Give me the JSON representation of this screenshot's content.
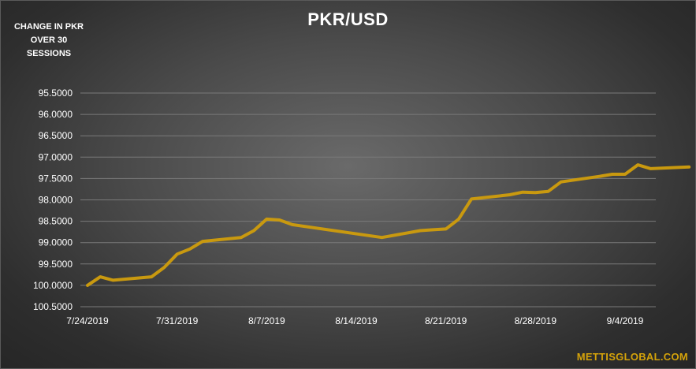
{
  "note": "CHANGE IN PKR OVER 30 SESSIONS",
  "credit": "METTISGLOBAL.COM",
  "colors": {
    "line": "#c9990f",
    "grid": "#7a7a7a",
    "text": "#ffffff",
    "credit": "#d4a20a"
  },
  "chart_data": {
    "type": "line",
    "title": "PKR/USD",
    "xlabel": "",
    "ylabel": "",
    "y_inverted": true,
    "ylim": [
      95.5,
      100.5
    ],
    "yticks": [
      "95.5000",
      "96.0000",
      "96.5000",
      "97.0000",
      "97.5000",
      "98.0000",
      "98.5000",
      "99.0000",
      "99.5000",
      "100.0000",
      "100.5000"
    ],
    "xticks": [
      "7/24/2019",
      "7/31/2019",
      "8/7/2019",
      "8/14/2019",
      "8/21/2019",
      "8/28/2019",
      "9/4/2019"
    ],
    "grid": true,
    "series": [
      {
        "values": [
          [
            "2019-07-24",
            100.0
          ],
          [
            "2019-07-25",
            99.8
          ],
          [
            "2019-07-26",
            99.88
          ],
          [
            "2019-07-29",
            99.8
          ],
          [
            "2019-07-30",
            99.58
          ],
          [
            "2019-07-31",
            99.27
          ],
          [
            "2019-08-01",
            99.15
          ],
          [
            "2019-08-02",
            98.97
          ],
          [
            "2019-08-05",
            98.88
          ],
          [
            "2019-08-06",
            98.72
          ],
          [
            "2019-08-07",
            98.45
          ],
          [
            "2019-08-08",
            98.47
          ],
          [
            "2019-08-09",
            98.58
          ],
          [
            "2019-08-16",
            98.88
          ],
          [
            "2019-08-19",
            98.72
          ],
          [
            "2019-08-20",
            98.7
          ],
          [
            "2019-08-21",
            98.68
          ],
          [
            "2019-08-22",
            98.45
          ],
          [
            "2019-08-23",
            97.98
          ],
          [
            "2019-08-26",
            97.88
          ],
          [
            "2019-08-27",
            97.82
          ],
          [
            "2019-08-28",
            97.83
          ],
          [
            "2019-08-29",
            97.8
          ],
          [
            "2019-08-30",
            97.58
          ],
          [
            "2019-09-02",
            97.45
          ],
          [
            "2019-09-03",
            97.4
          ],
          [
            "2019-09-04",
            97.4
          ],
          [
            "2019-09-05",
            97.18
          ],
          [
            "2019-09-06",
            97.27
          ],
          [
            "2019-09-09",
            97.23
          ]
        ]
      }
    ]
  }
}
